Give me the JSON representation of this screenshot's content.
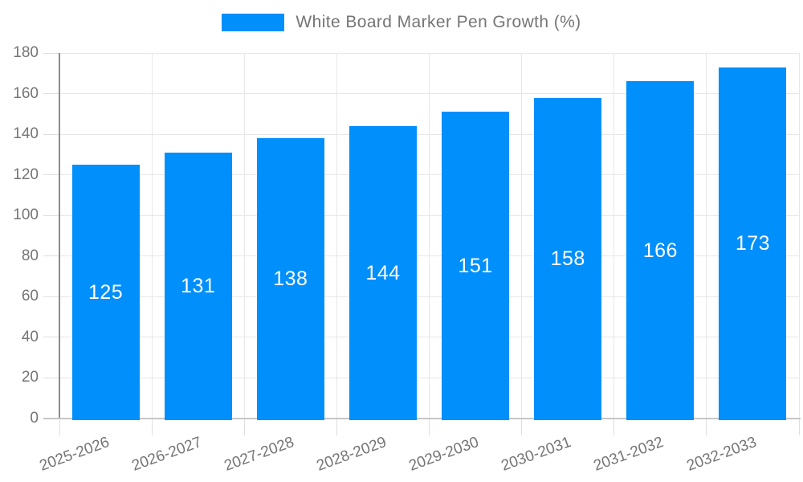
{
  "legend": {
    "label": "White Board Marker Pen Growth (%)"
  },
  "chart_data": {
    "type": "bar",
    "title": "White Board Marker Pen Growth (%)",
    "categories": [
      "2025-2026",
      "2026-2027",
      "2027-2028",
      "2028-2029",
      "2029-2030",
      "2030-2031",
      "2031-2032",
      "2032-2033"
    ],
    "values": [
      125,
      131,
      138,
      144,
      151,
      158,
      166,
      173
    ],
    "series_name": "White Board Marker Pen Growth (%)",
    "xlabel": "",
    "ylabel": "",
    "ylim": [
      0,
      180
    ],
    "ytick_step": 20,
    "grid": true,
    "legend_position": "top",
    "data_labels": "inside-center"
  },
  "colors": {
    "bar": "#008FFB",
    "grid": "#e7e7e7",
    "tick": "#dedede",
    "y_axis_line": "#8c8c8c",
    "x_axis_line": "#c6c6c6",
    "axis_text": "#757575",
    "value_text": "#ffffff"
  }
}
